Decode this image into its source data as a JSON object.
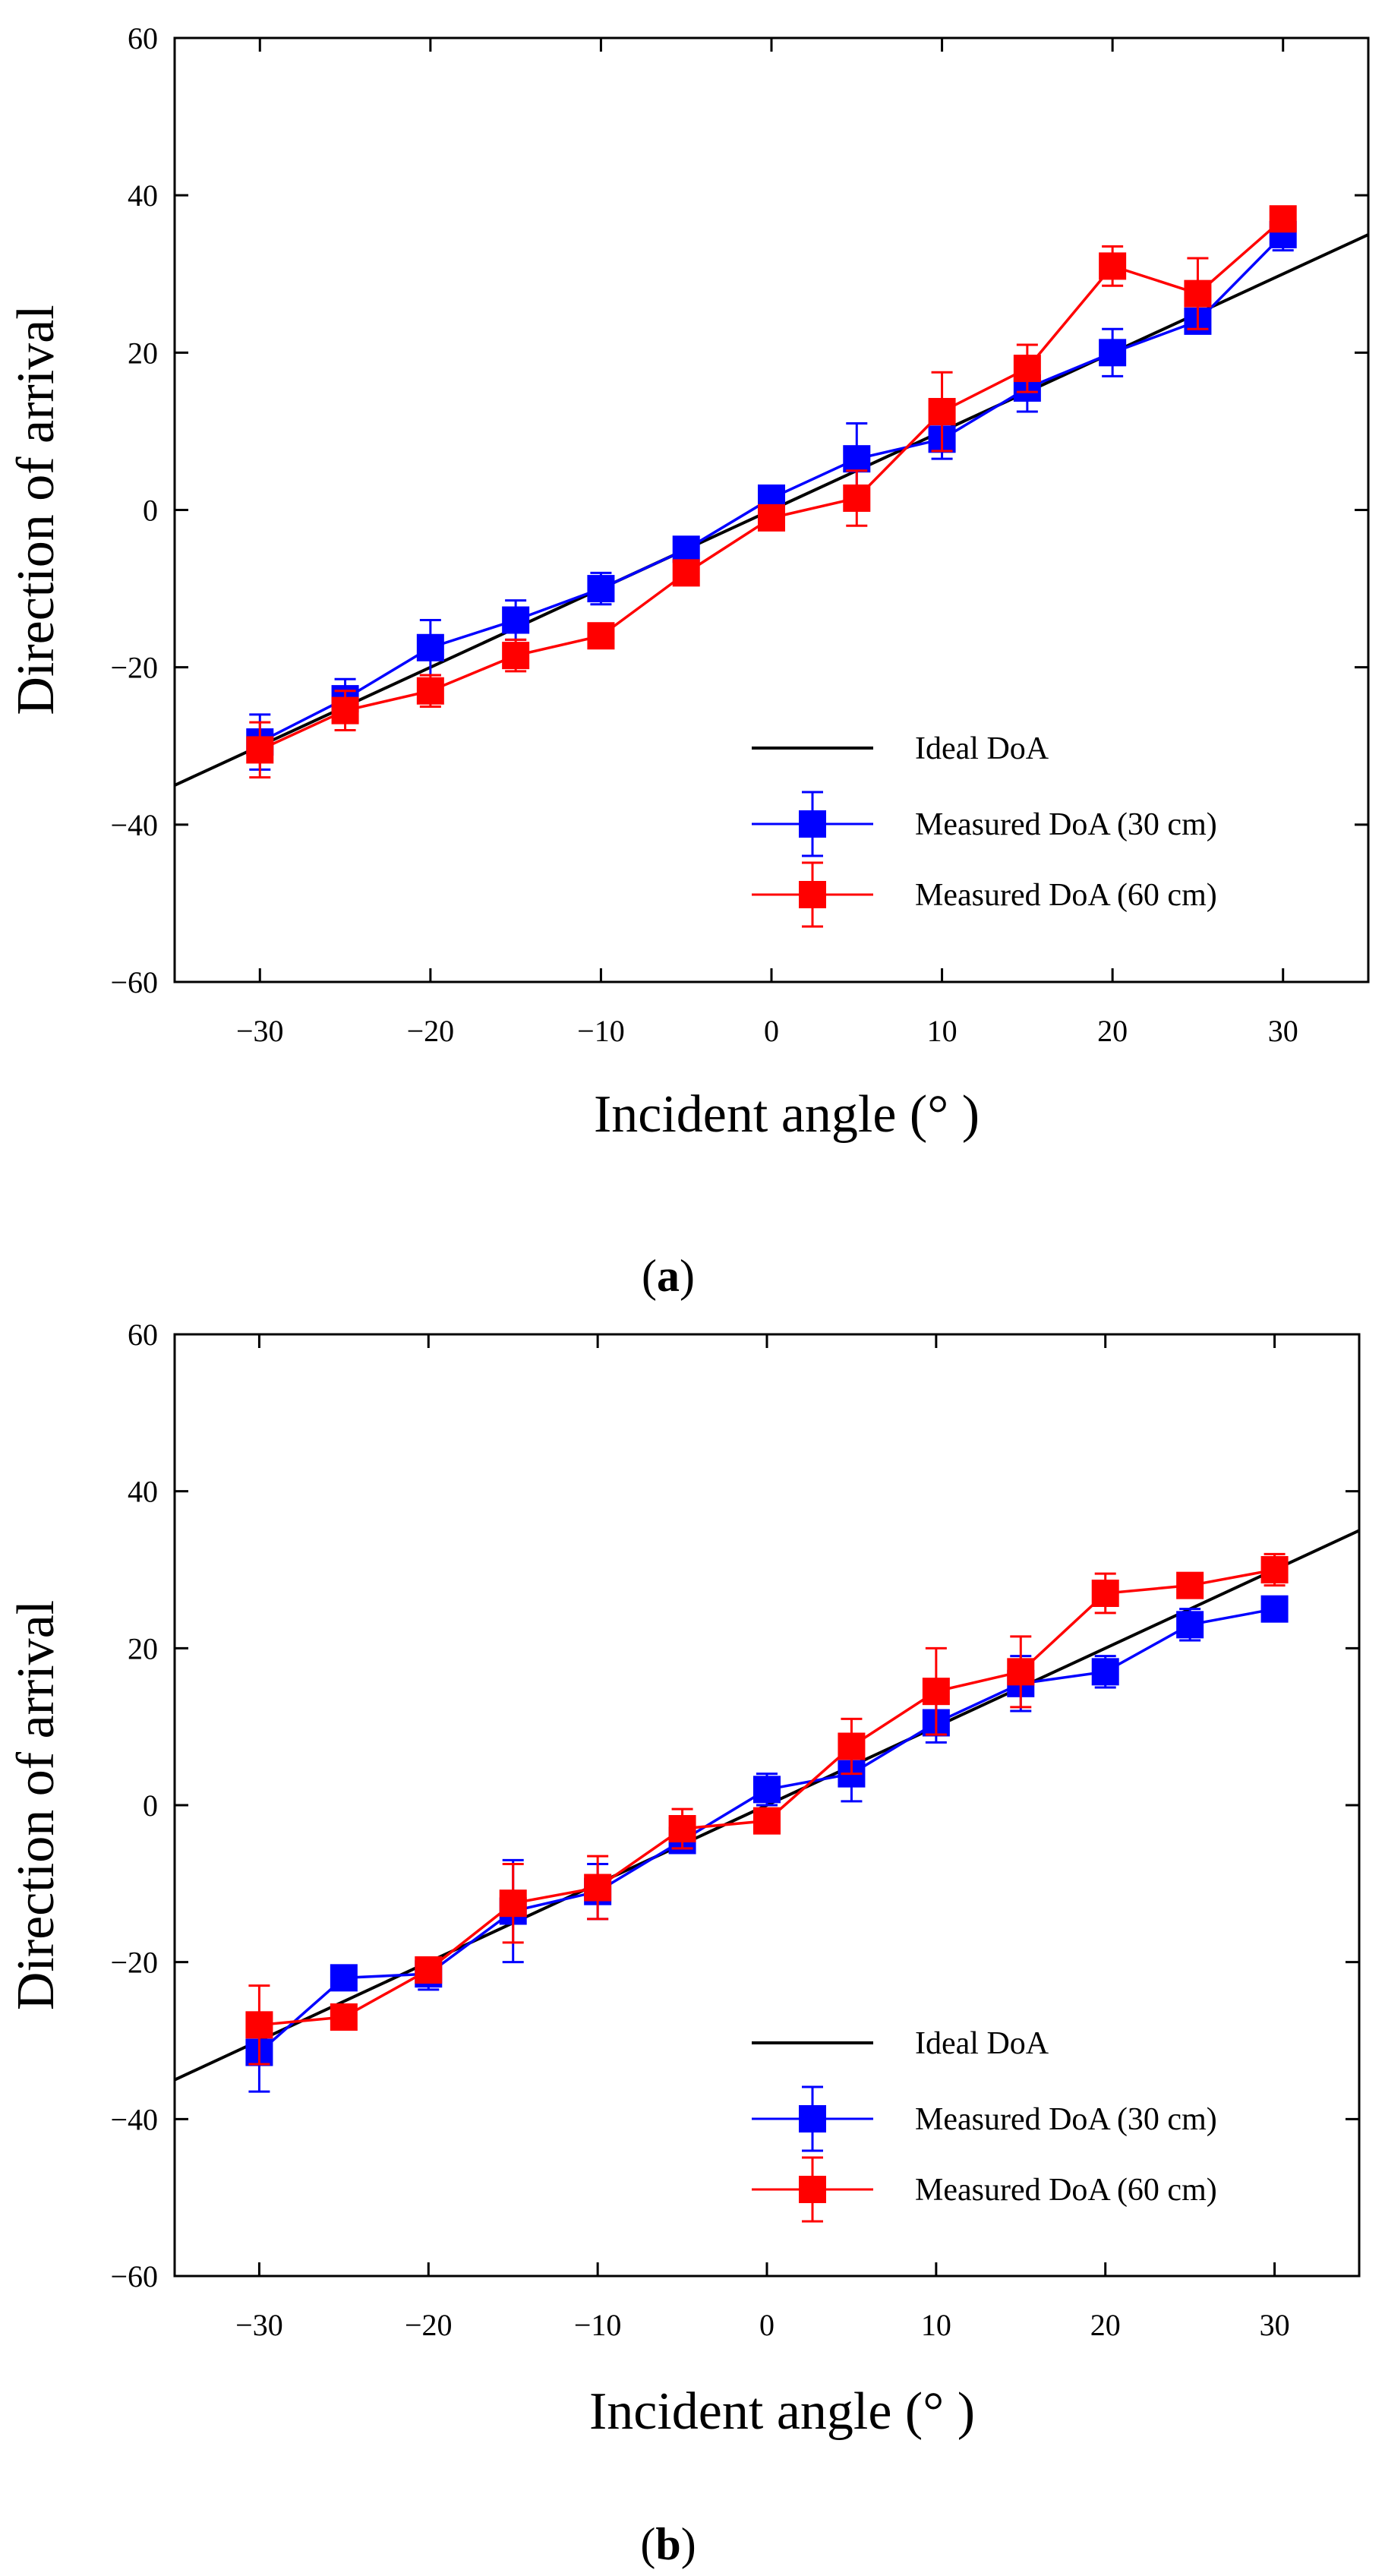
{
  "figure": {
    "panels": [
      "a",
      "b"
    ]
  },
  "chart_data": [
    {
      "type": "line",
      "panel": "a",
      "caption_letter": "a",
      "xlabel": "Incident angle (° )",
      "ylabel": "Direction of arrival",
      "xlim": [
        -35,
        35
      ],
      "ylim": [
        -60,
        60
      ],
      "xticks": [
        -30,
        -20,
        -10,
        0,
        10,
        20,
        30
      ],
      "yticks": [
        -60,
        -40,
        -20,
        0,
        20,
        40,
        60
      ],
      "xtick_labels": [
        "−30",
        "−20",
        "−10",
        "0",
        "10",
        "20",
        "30"
      ],
      "ytick_labels": [
        "−60",
        "−40",
        "−20",
        "0",
        "20",
        "40",
        "60"
      ],
      "grid": false,
      "legend_position": "bottom-right",
      "ideal": {
        "name": "Ideal DoA",
        "color": "#000000",
        "x": [
          -35,
          35
        ],
        "y": [
          -35,
          35
        ]
      },
      "series": [
        {
          "name": "Measured DoA (30 cm)",
          "color": "#0000ff",
          "x": [
            -30,
            -25,
            -20,
            -15,
            -10,
            -5,
            0,
            5,
            10,
            15,
            20,
            25,
            30
          ],
          "y": [
            -29.5,
            -24,
            -17.5,
            -14,
            -10,
            -5,
            1.5,
            6.5,
            9,
            15.5,
            20,
            24,
            35
          ],
          "err": [
            3.5,
            2.5,
            3.5,
            2.5,
            2,
            1,
            1.5,
            4.5,
            2.5,
            3,
            3,
            1.5,
            2
          ]
        },
        {
          "name": "Measured DoA (60 cm)",
          "color": "#ff0000",
          "x": [
            -30,
            -25,
            -20,
            -15,
            -10,
            -5,
            0,
            5,
            10,
            15,
            20,
            25,
            30
          ],
          "y": [
            -30.5,
            -25.5,
            -23,
            -18.5,
            -16,
            -8,
            -1,
            1.5,
            12.5,
            18,
            31,
            27.5,
            37
          ],
          "err": [
            3.5,
            2.5,
            2,
            2,
            1.5,
            1,
            1,
            3.5,
            5,
            3,
            2.5,
            4.5,
            1.5
          ]
        }
      ]
    },
    {
      "type": "line",
      "panel": "b",
      "caption_letter": "b",
      "xlabel": "Incident angle (° )",
      "ylabel": "Direction of arrival",
      "xlim": [
        -35,
        35
      ],
      "ylim": [
        -60,
        60
      ],
      "xticks": [
        -30,
        -20,
        -10,
        0,
        10,
        20,
        30
      ],
      "yticks": [
        -60,
        -40,
        -20,
        0,
        20,
        40,
        60
      ],
      "xtick_labels": [
        "−30",
        "−20",
        "−10",
        "0",
        "10",
        "20",
        "30"
      ],
      "ytick_labels": [
        "−60",
        "−40",
        "−20",
        "0",
        "20",
        "40",
        "60"
      ],
      "grid": false,
      "legend_position": "bottom-right",
      "ideal": {
        "name": "Ideal DoA",
        "color": "#000000",
        "x": [
          -35,
          35
        ],
        "y": [
          -35,
          35
        ]
      },
      "series": [
        {
          "name": "Measured DoA (30 cm)",
          "color": "#0000ff",
          "x": [
            -30,
            -25,
            -20,
            -15,
            -10,
            -5,
            0,
            5,
            10,
            15,
            20,
            25,
            30
          ],
          "y": [
            -31.5,
            -22,
            -21.5,
            -13.5,
            -11,
            -4.5,
            2,
            4,
            10.5,
            15.5,
            17,
            23,
            25
          ],
          "err": [
            5,
            1,
            2,
            6.5,
            3.5,
            1.5,
            2,
            3.5,
            2.5,
            3.5,
            2,
            2,
            1.5
          ]
        },
        {
          "name": "Measured DoA (60 cm)",
          "color": "#ff0000",
          "x": [
            -30,
            -25,
            -20,
            -15,
            -10,
            -5,
            0,
            5,
            10,
            15,
            20,
            25,
            30
          ],
          "y": [
            -28,
            -27,
            -21,
            -12.5,
            -10.5,
            -3,
            -2,
            7.5,
            14.5,
            17,
            27,
            28,
            30
          ],
          "err": [
            5,
            1,
            1,
            5,
            4,
            2.5,
            1,
            3.5,
            5.5,
            4.5,
            2.5,
            1,
            2
          ]
        }
      ]
    }
  ]
}
